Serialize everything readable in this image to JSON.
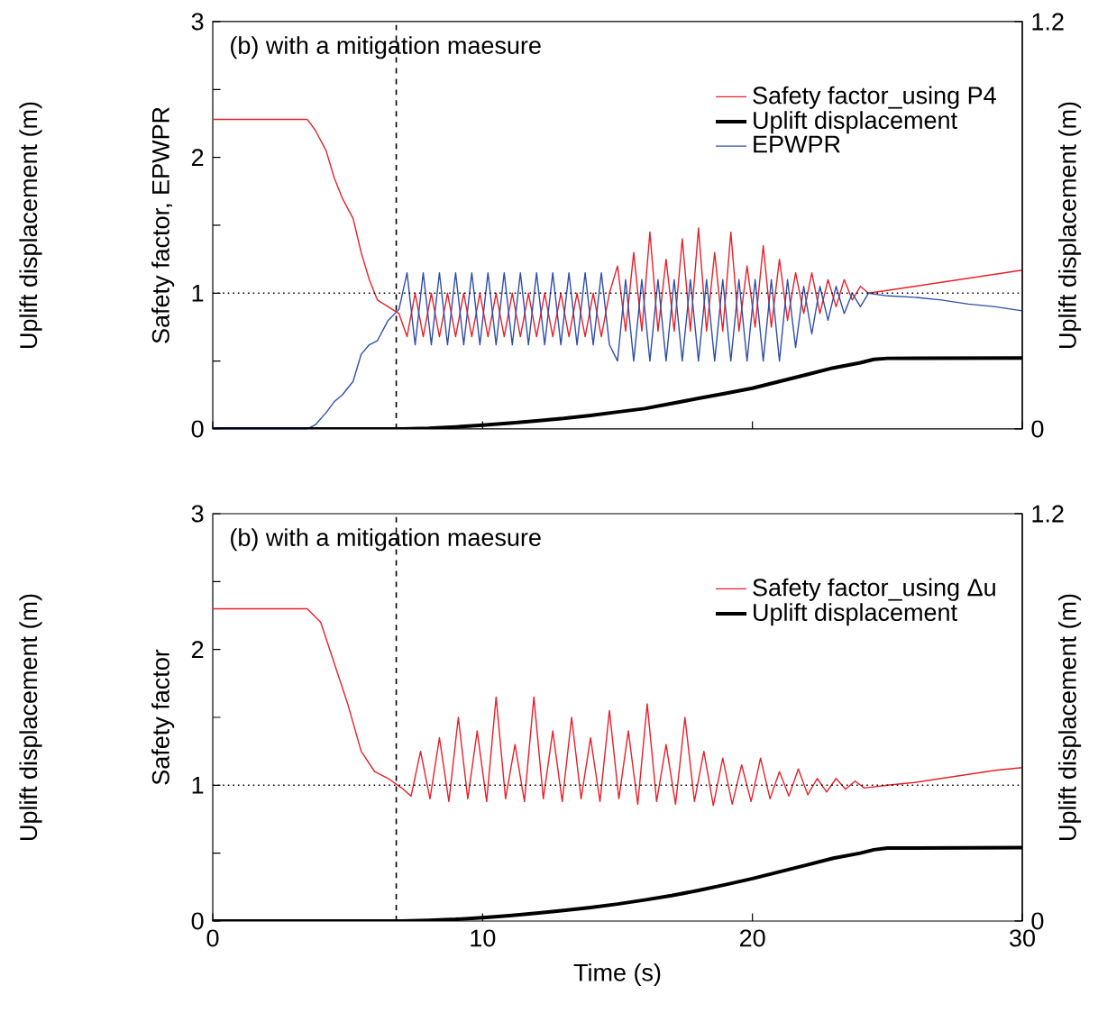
{
  "chart_data": [
    {
      "type": "line",
      "title": "(b) with a mitigation maesure",
      "ylabel": "Safety factor, EPWPR",
      "y2label": "Uplift displacement (m)",
      "annotations": [
        "Uplift displacement (m)"
      ],
      "xlim": [
        0,
        30
      ],
      "xticks": [
        0,
        10,
        20,
        30
      ],
      "ylim": [
        0,
        3
      ],
      "yticks": [
        0,
        {
          "value": 0.5,
          "label": null
        },
        1,
        {
          "value": 1.5,
          "label": null
        },
        2,
        {
          "value": 2.5,
          "label": null
        },
        3
      ],
      "y2lim": [
        0,
        1.2
      ],
      "y2ticks": [
        0,
        1.2
      ],
      "tick_labels": "y",
      "legend": "top right",
      "ref_lines": [
        {
          "axis": "y",
          "value": 1,
          "line_style": "dotted",
          "color": "#000000"
        },
        {
          "axis": "x",
          "value": 6.8,
          "line_style": "dashed",
          "color": "#000000"
        }
      ],
      "series": [
        {
          "name": "Safety factor_using P4",
          "color": "#e8202a",
          "x": [
            0,
            3.5,
            3.8,
            4.2,
            4.5,
            4.8,
            5.2,
            5.5,
            5.8,
            6.1,
            6.5,
            6.9,
            7.2,
            7.5,
            7.8,
            8.1,
            8.4,
            8.7,
            9,
            9.3,
            9.6,
            9.9,
            10.2,
            10.5,
            10.8,
            11.1,
            11.4,
            11.7,
            12,
            12.3,
            12.6,
            12.9,
            13.2,
            13.5,
            13.8,
            14.1,
            14.4,
            14.7,
            15,
            15.3,
            15.6,
            15.9,
            16.2,
            16.5,
            16.8,
            17.1,
            17.4,
            17.7,
            18,
            18.3,
            18.6,
            18.9,
            19.2,
            19.5,
            19.8,
            20.1,
            20.4,
            20.7,
            21,
            21.3,
            21.6,
            21.9,
            22.2,
            22.5,
            22.8,
            23.1,
            23.4,
            23.7,
            24,
            24.3,
            25,
            26,
            27,
            28,
            29,
            30
          ],
          "values": [
            2.28,
            2.28,
            2.2,
            2.05,
            1.85,
            1.7,
            1.55,
            1.3,
            1.1,
            0.95,
            0.9,
            0.85,
            0.68,
            1.0,
            0.68,
            1.0,
            0.68,
            1.0,
            0.68,
            1.0,
            0.68,
            1.0,
            0.68,
            1.0,
            0.68,
            1.0,
            0.68,
            1.0,
            0.68,
            1.0,
            0.68,
            1.0,
            0.68,
            1.0,
            0.68,
            1.0,
            0.68,
            1.0,
            1.2,
            0.72,
            1.3,
            0.72,
            1.45,
            0.72,
            1.25,
            0.72,
            1.4,
            0.72,
            1.48,
            0.72,
            1.3,
            0.72,
            1.45,
            0.72,
            1.2,
            0.75,
            1.35,
            0.75,
            1.25,
            0.8,
            1.15,
            0.85,
            1.15,
            0.85,
            1.1,
            0.9,
            1.1,
            0.95,
            1.05,
            1.0,
            1.02,
            1.05,
            1.08,
            1.11,
            1.14,
            1.17
          ]
        },
        {
          "name": "Uplift displacement",
          "color": "#000000",
          "axis": "y2",
          "x": [
            0,
            7,
            8,
            9,
            10,
            11,
            12,
            13,
            14,
            15,
            16,
            17,
            18,
            19,
            20,
            21,
            22,
            23,
            24,
            24.5,
            25,
            30
          ],
          "values": [
            0,
            0,
            0.002,
            0.006,
            0.011,
            0.017,
            0.024,
            0.031,
            0.04,
            0.05,
            0.06,
            0.075,
            0.09,
            0.105,
            0.12,
            0.14,
            0.16,
            0.18,
            0.195,
            0.205,
            0.208,
            0.209
          ]
        },
        {
          "name": "EPWPR",
          "color": "#2f4fa8",
          "x": [
            0,
            3.5,
            3.8,
            4.2,
            4.5,
            4.8,
            5.2,
            5.5,
            5.8,
            6.1,
            6.5,
            6.9,
            7.2,
            7.5,
            7.8,
            8.1,
            8.4,
            8.7,
            9,
            9.3,
            9.6,
            9.9,
            10.2,
            10.5,
            10.8,
            11.1,
            11.4,
            11.7,
            12,
            12.3,
            12.6,
            12.9,
            13.2,
            13.5,
            13.8,
            14.1,
            14.4,
            14.7,
            15,
            15.3,
            15.6,
            15.9,
            16.2,
            16.5,
            16.8,
            17.1,
            17.4,
            17.7,
            18,
            18.3,
            18.6,
            18.9,
            19.2,
            19.5,
            19.8,
            20.1,
            20.4,
            20.7,
            21,
            21.3,
            21.6,
            21.9,
            22.2,
            22.5,
            22.8,
            23.1,
            23.4,
            23.7,
            24,
            24.3,
            25,
            26,
            27,
            28,
            29,
            30
          ],
          "values": [
            0,
            0,
            0.03,
            0.12,
            0.2,
            0.25,
            0.35,
            0.55,
            0.62,
            0.65,
            0.8,
            0.88,
            1.15,
            0.62,
            1.15,
            0.62,
            1.15,
            0.62,
            1.15,
            0.62,
            1.15,
            0.62,
            1.15,
            0.62,
            1.15,
            0.62,
            1.15,
            0.62,
            1.15,
            0.62,
            1.15,
            0.62,
            1.15,
            0.62,
            1.15,
            0.62,
            1.15,
            0.62,
            0.5,
            1.1,
            0.5,
            1.1,
            0.5,
            1.1,
            0.5,
            1.1,
            0.5,
            1.1,
            0.5,
            1.1,
            0.5,
            1.1,
            0.5,
            1.1,
            0.5,
            1.1,
            0.5,
            1.1,
            0.5,
            1.1,
            0.6,
            1.05,
            0.7,
            1.05,
            0.8,
            1.05,
            0.85,
            1.0,
            0.9,
            1.0,
            0.98,
            0.97,
            0.95,
            0.92,
            0.9,
            0.87
          ]
        }
      ]
    },
    {
      "type": "line",
      "title": "(b) with a mitigation maesure",
      "xlabel": "Time (s)",
      "ylabel": "Safety factor",
      "y2label": "Uplift displacement (m)",
      "annotations": [
        "Uplift displacement (m)"
      ],
      "xlim": [
        0,
        30
      ],
      "xticks": [
        0,
        10,
        20,
        30
      ],
      "ylim": [
        0,
        3
      ],
      "yticks": [
        0,
        {
          "value": 0.5,
          "label": null
        },
        1,
        {
          "value": 1.5,
          "label": null
        },
        2,
        {
          "value": 2.5,
          "label": null
        },
        3
      ],
      "y2lim": [
        0,
        1.2
      ],
      "y2ticks": [
        0,
        1.2
      ],
      "legend": "top right",
      "ref_lines": [
        {
          "axis": "y",
          "value": 1,
          "line_style": "dotted",
          "color": "#000000"
        },
        {
          "axis": "x",
          "value": 6.8,
          "line_style": "dashed",
          "color": "#000000"
        }
      ],
      "series": [
        {
          "name": "Safety factor_using Δu",
          "color": "#e8202a",
          "x": [
            0,
            3.5,
            4,
            4.5,
            5,
            5.5,
            6,
            6.5,
            7,
            7.35,
            7.7,
            8.05,
            8.4,
            8.75,
            9.1,
            9.45,
            9.8,
            10.15,
            10.5,
            10.85,
            11.2,
            11.55,
            11.9,
            12.25,
            12.6,
            12.95,
            13.3,
            13.65,
            14,
            14.35,
            14.7,
            15.05,
            15.4,
            15.75,
            16.1,
            16.45,
            16.8,
            17.15,
            17.5,
            17.85,
            18.2,
            18.55,
            18.9,
            19.25,
            19.6,
            19.95,
            20.3,
            20.65,
            21,
            21.35,
            21.7,
            22.05,
            22.4,
            22.75,
            23.1,
            23.45,
            23.8,
            24.15,
            25,
            26,
            27,
            28,
            29,
            30
          ],
          "values": [
            2.3,
            2.3,
            2.2,
            1.9,
            1.6,
            1.25,
            1.1,
            1.05,
            0.98,
            0.92,
            1.25,
            0.9,
            1.35,
            0.88,
            1.5,
            0.9,
            1.4,
            0.88,
            1.65,
            0.9,
            1.3,
            0.88,
            1.65,
            0.9,
            1.4,
            0.88,
            1.5,
            0.9,
            1.35,
            0.88,
            1.55,
            0.9,
            1.4,
            0.86,
            1.6,
            0.88,
            1.3,
            0.86,
            1.5,
            0.88,
            1.25,
            0.85,
            1.2,
            0.86,
            1.15,
            0.88,
            1.2,
            0.9,
            1.1,
            0.92,
            1.12,
            0.93,
            1.05,
            0.95,
            1.05,
            0.97,
            1.03,
            0.98,
            1.0,
            1.02,
            1.05,
            1.08,
            1.11,
            1.13
          ]
        },
        {
          "name": "Uplift displacement",
          "color": "#000000",
          "axis": "y2",
          "x": [
            0,
            7,
            8,
            9,
            10,
            11,
            12,
            13,
            14,
            15,
            16,
            17,
            18,
            19,
            20,
            21,
            22,
            23,
            24,
            24.5,
            25,
            30
          ],
          "values": [
            0,
            0,
            0.002,
            0.005,
            0.01,
            0.016,
            0.023,
            0.031,
            0.04,
            0.05,
            0.062,
            0.075,
            0.09,
            0.107,
            0.125,
            0.145,
            0.165,
            0.185,
            0.2,
            0.21,
            0.215,
            0.216
          ]
        }
      ]
    }
  ]
}
